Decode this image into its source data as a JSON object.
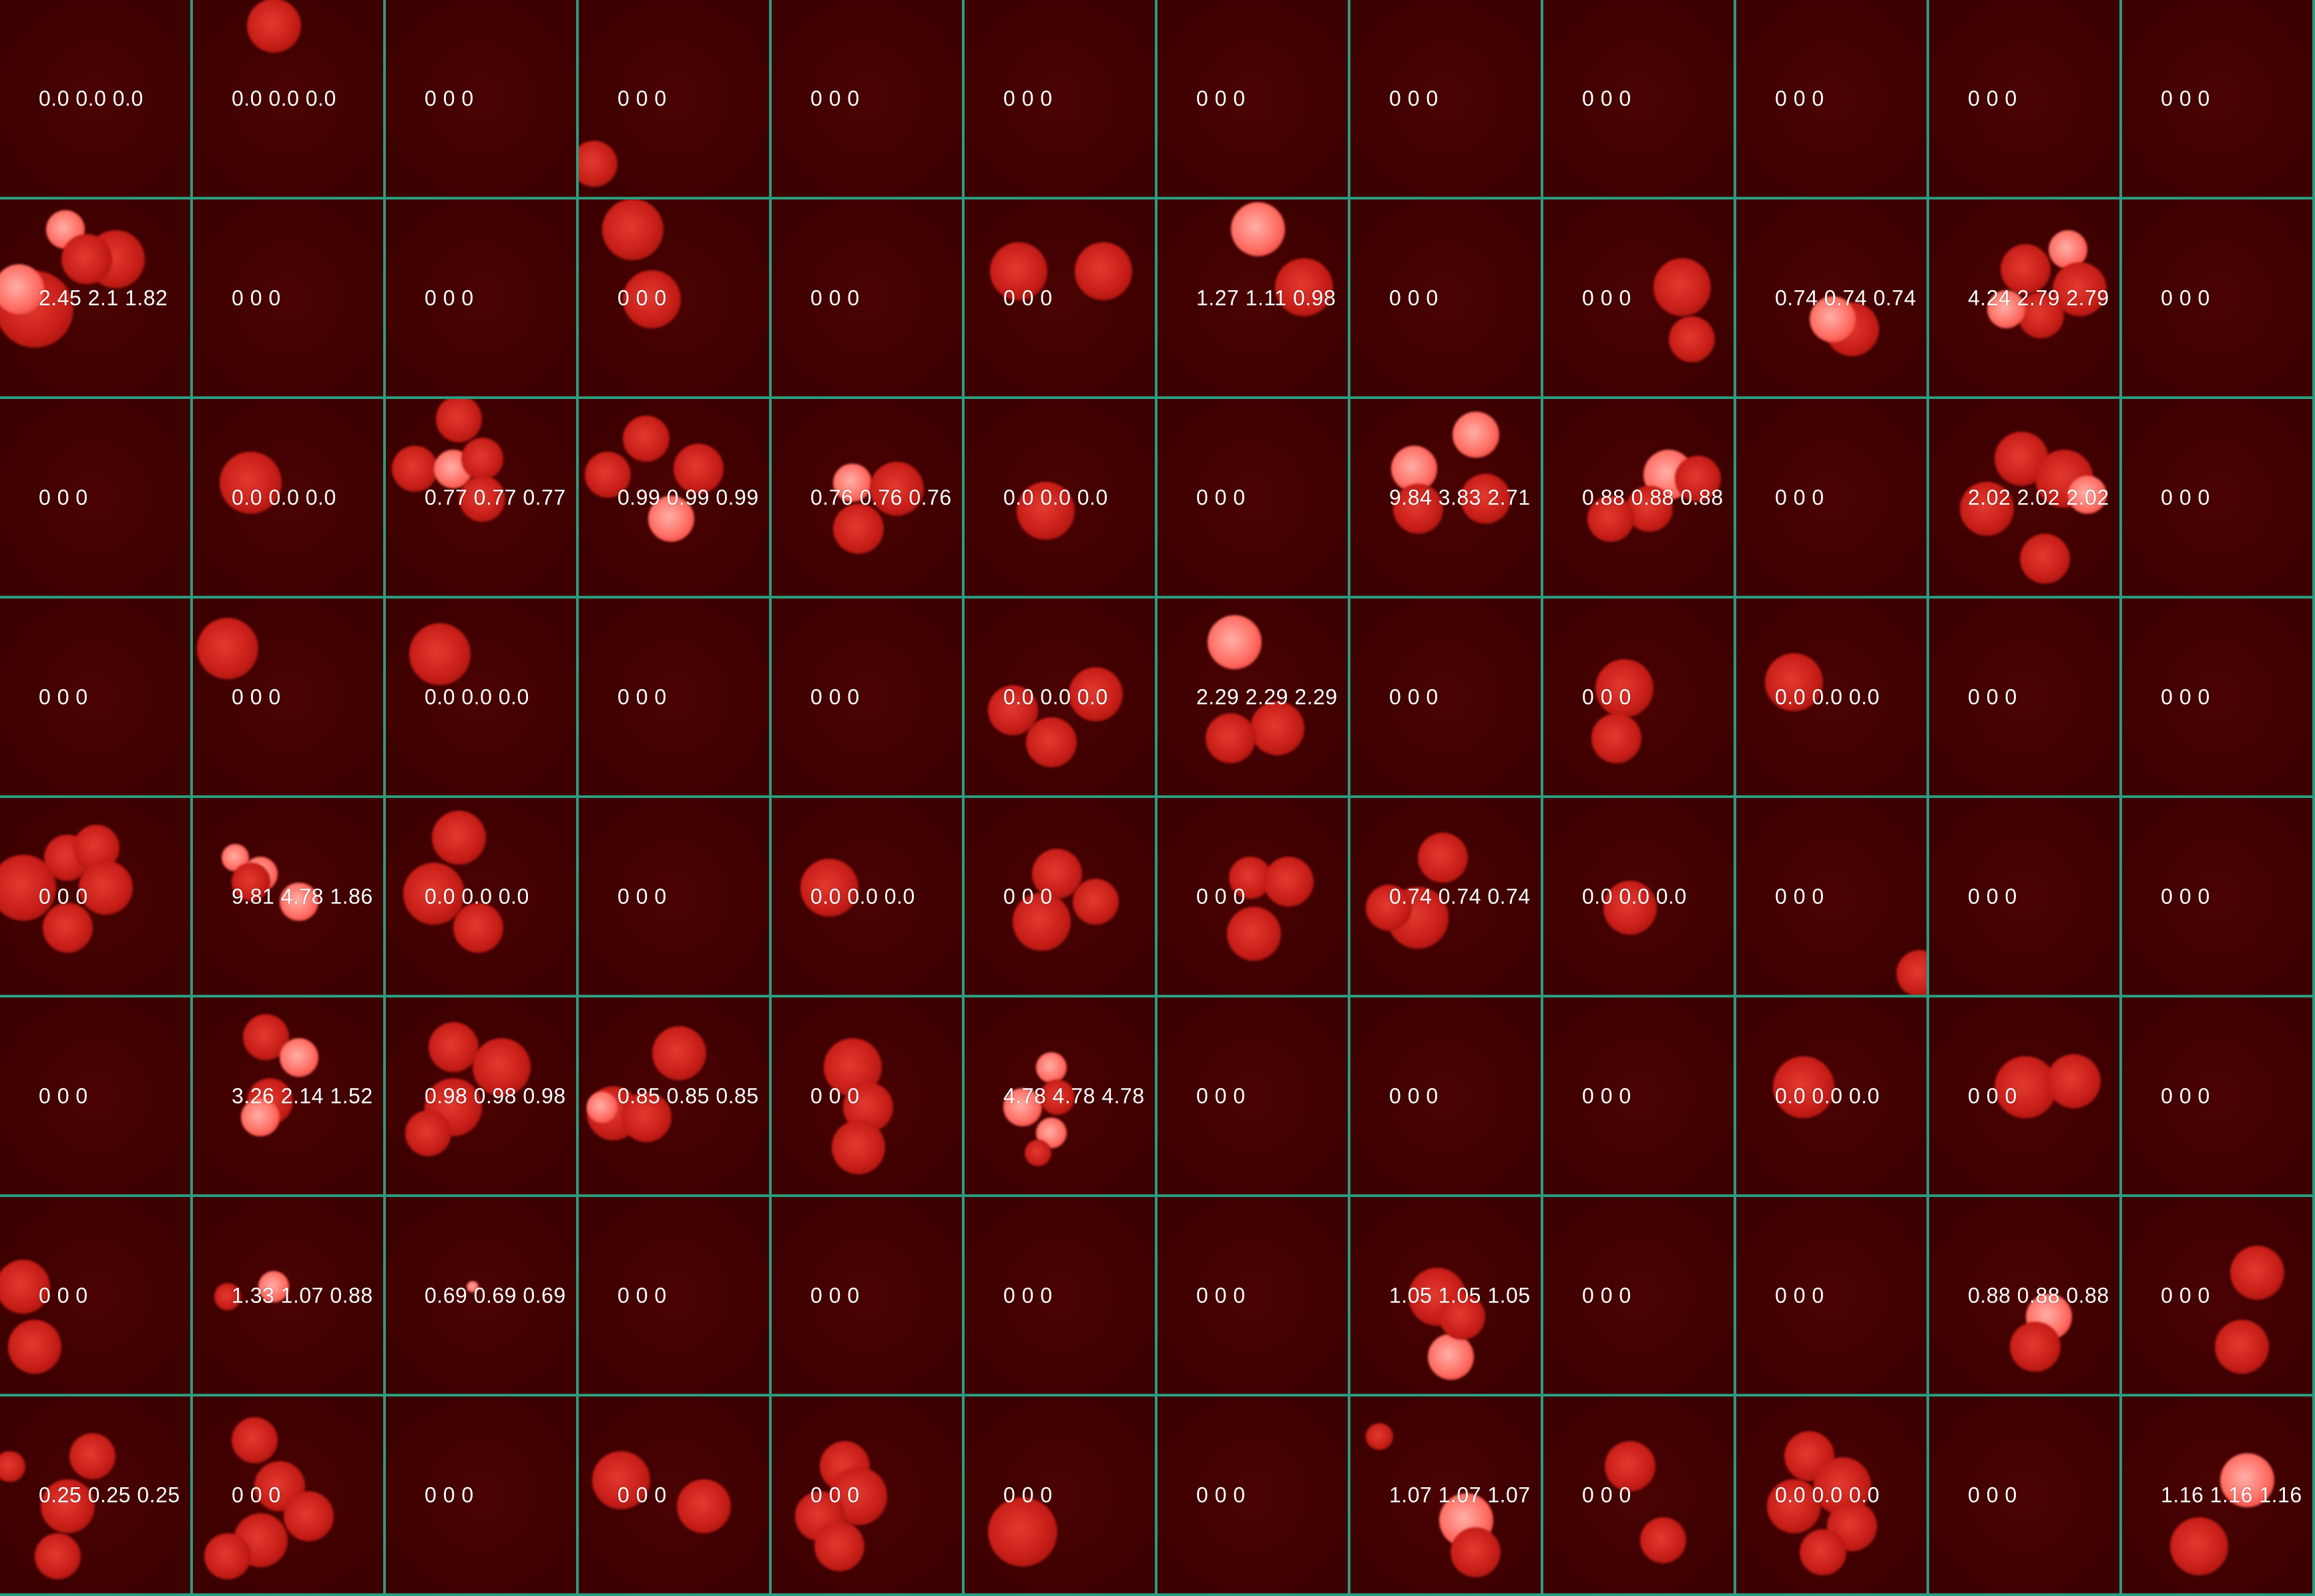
{
  "grid": {
    "rows": 8,
    "cols": 12,
    "line_color": "#2a9d80",
    "labels": [
      [
        "0.0 0.0 0.0",
        "0.0 0.0 0.0",
        "0 0 0",
        "0 0 0",
        "0 0 0",
        "0 0 0",
        "0 0 0",
        "0 0 0",
        "0 0 0",
        "0 0 0",
        "0 0 0",
        "0 0 0"
      ],
      [
        "2.45 2.1 1.82",
        "0 0 0",
        "0 0 0",
        "0 0 0",
        "0 0 0",
        "0 0 0",
        "1.27 1.11 0.98",
        "0 0 0",
        "0 0 0",
        "0.74 0.74 0.74",
        "4.24 2.79 2.79",
        "0 0 0"
      ],
      [
        "0 0 0",
        "0.0 0.0 0.0",
        "0.77 0.77 0.77",
        "0.99 0.99 0.99",
        "0.76 0.76 0.76",
        "0.0 0.0 0.0",
        "0 0 0",
        "9.84 3.83 2.71",
        "0.88 0.88 0.88",
        "0 0 0",
        "2.02 2.02 2.02",
        "0 0 0"
      ],
      [
        "0 0 0",
        "0 0 0",
        "0.0 0.0 0.0",
        "0 0 0",
        "0 0 0",
        "0.0 0.0 0.0",
        "2.29 2.29 2.29",
        "0 0 0",
        "0 0 0",
        "0.0 0.0 0.0",
        "0 0 0",
        "0 0 0"
      ],
      [
        "0 0 0",
        "9.81 4.78 1.86",
        "0.0 0.0 0.0",
        "0 0 0",
        "0.0 0.0 0.0",
        "0 0 0",
        "0 0 0",
        "0.74 0.74 0.74",
        "0.0 0.0 0.0",
        "0 0 0",
        "0 0 0",
        "0 0 0"
      ],
      [
        "0 0 0",
        "3.26 2.14 1.52",
        "0.98 0.98 0.98",
        "0.85 0.85 0.85",
        "0 0 0",
        "4.78 4.78 4.78",
        "0 0 0",
        "0 0 0",
        "0 0 0",
        "0.0 0.0 0.0",
        "0 0 0",
        "0 0 0"
      ],
      [
        "0 0 0",
        "1.33 1.07 0.88",
        "0.69 0.69 0.69",
        "0 0 0",
        "0 0 0",
        "0 0 0",
        "0 0 0",
        "1.05 1.05 1.05",
        "0 0 0",
        "0 0 0",
        "0.88 0.88 0.88",
        "0 0 0"
      ],
      [
        "0.25 0.25 0.25",
        "0 0 0",
        "0 0 0",
        "0 0 0",
        "0 0 0",
        "0 0 0",
        "0 0 0",
        "1.07 1.07 1.07",
        "0 0 0",
        "0.0 0.0 0.0",
        "0 0 0",
        "1.16 1.16 1.16"
      ]
    ]
  }
}
